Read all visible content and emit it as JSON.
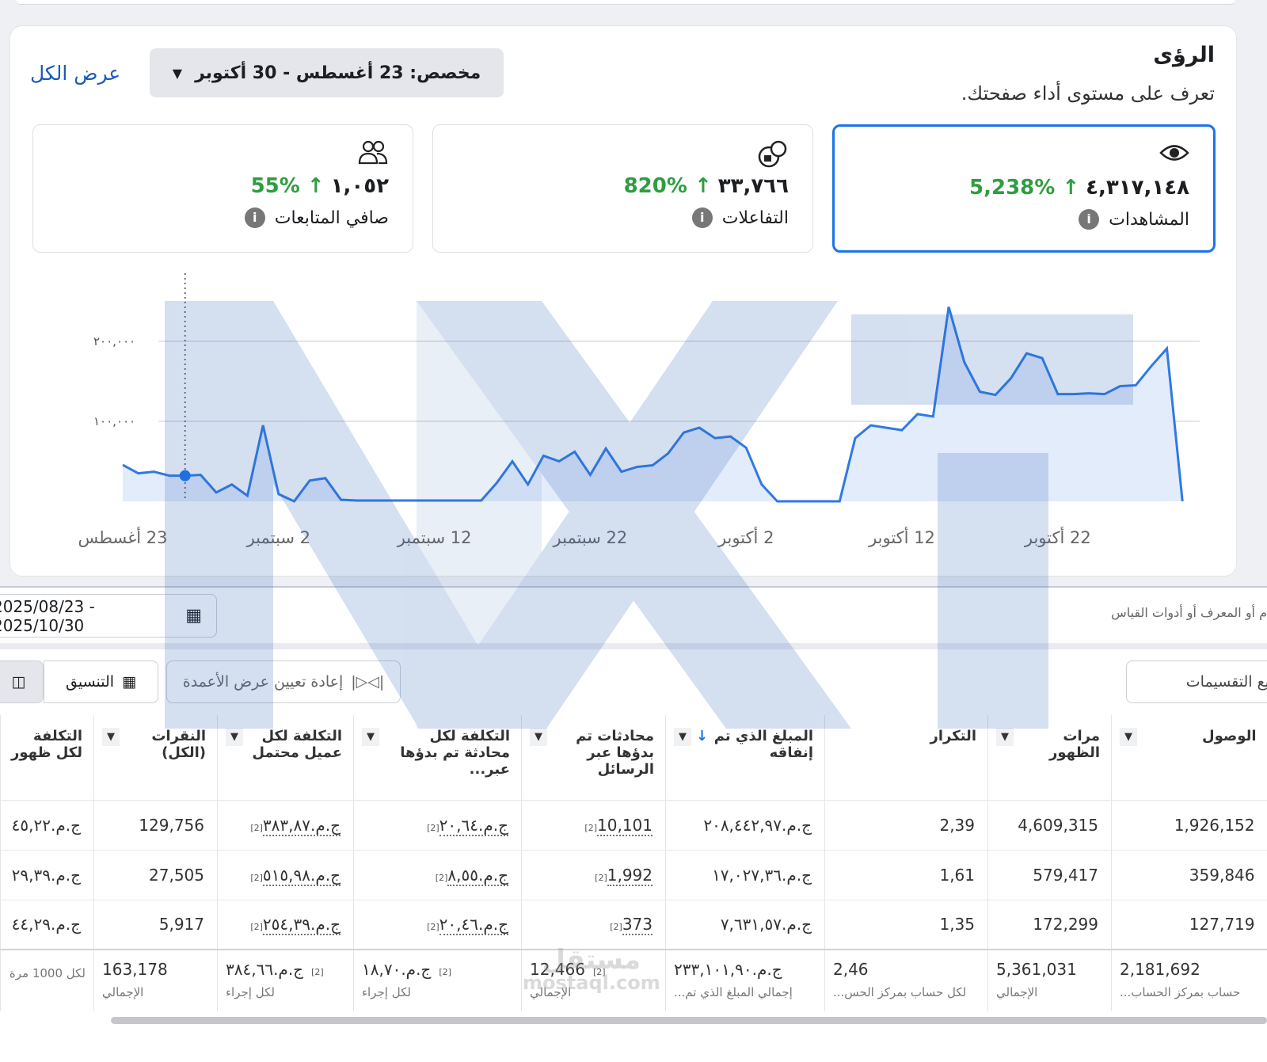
{
  "header": {
    "title": "الرؤى",
    "subtitle": "تعرف على مستوى أداء صفحتك.",
    "date_range": "مخصص: 23 أغسطس - 30 أكتوبر",
    "view_all": "عرض الكل"
  },
  "metrics": [
    {
      "icon": "eye-icon",
      "value": "٤,٣١٧,١٤٨",
      "change": "5,238%",
      "label": "المشاهدات",
      "selected": true
    },
    {
      "icon": "reactions-icon",
      "value": "٣٣,٧٦٦",
      "change": "820%",
      "label": "التفاعلات"
    },
    {
      "icon": "people-icon",
      "value": "١,٠٥٢",
      "change": "55%",
      "label": "صافي المتابعات"
    }
  ],
  "colors": {
    "accent": "#1a74e8",
    "positive": "#2e9d3f",
    "line": "#2f7ae5",
    "link": "#1a5bb8"
  },
  "chart_data": {
    "type": "area",
    "x_start": "23 أغسطس",
    "x_end": "30 أكتوبر",
    "x_ticks": [
      "23 أغسطس",
      "2 سبتمبر",
      "12 سبتمبر",
      "22 سبتمبر",
      "2 أكتوبر",
      "12 أكتوبر",
      "22 أكتوبر"
    ],
    "y_ticks": [
      {
        "value": 100000,
        "label": "١٠٠,٠٠٠"
      },
      {
        "value": 200000,
        "label": "٢٠٠,٠٠٠"
      }
    ],
    "ylim": [
      0,
      245000
    ],
    "grid": true,
    "highlighted_index": 4,
    "values": [
      45500,
      35000,
      37000,
      32000,
      32000,
      33000,
      11000,
      21000,
      7000,
      95000,
      9000,
      0,
      26000,
      29000,
      2000,
      1000,
      1000,
      1000,
      1000,
      1000,
      1000,
      1000,
      1000,
      1000,
      23000,
      50000,
      21000,
      57000,
      50000,
      62000,
      33000,
      66000,
      37000,
      43000,
      45000,
      60000,
      86000,
      92000,
      79000,
      81000,
      67000,
      21000,
      0,
      0,
      0,
      0,
      0,
      79000,
      95000,
      92000,
      89000,
      109000,
      106000,
      243000,
      174000,
      137000,
      133000,
      154000,
      185000,
      179000,
      134000,
      134000,
      135000,
      134000,
      144000,
      145000,
      169000,
      191000,
      0
    ]
  },
  "table_section": {
    "date_range": "2025/08/23 - 2025/10/30",
    "search_hint": "م أو المعرف أو أدوات القياس",
    "format_label": "التنسيق",
    "reset_columns_label": "إعادة تعيين عرض الأعمدة",
    "breakdowns_label": "يع التقسيمات",
    "columns": [
      "الوصول",
      "مرات الظهور",
      "التكرار",
      "المبلغ الذي تم إنفاقه",
      "محادثات تم بدؤها عبر الرسائل",
      "التكلفة لكل محادثة تم بدؤها عبر...",
      "التكلفة لكل عميل محتمل",
      "النقرات (الكل)",
      "التكلفة لكل ظهور"
    ],
    "rows": [
      [
        "1,926,152",
        "4,609,315",
        "2,39",
        "ج.م.٢٠٨,٤٤٢,٩٧",
        "10,101",
        "ج.م.٢٠,٦٤",
        "ج.م.٣٨٣,٨٧",
        "129,756",
        "ج.م.٤٥,٢٢"
      ],
      [
        "359,846",
        "579,417",
        "1,61",
        "ج.م.١٧,٠٢٧,٣٦",
        "1,992",
        "ج.م.٨,٥٥",
        "ج.م.٥١٥,٩٨",
        "27,505",
        "ج.م.٢٩,٣٩"
      ],
      [
        "127,719",
        "172,299",
        "1,35",
        "ج.م.٧,٦٣١,٥٧",
        "373",
        "ج.م.٢٠,٤٦",
        "ج.م.٢٥٤,٣٩",
        "5,917",
        "ج.م.٤٤,٢٩"
      ]
    ],
    "footnote": "[2]",
    "totals": [
      {
        "value": "2,181,692",
        "sub": "حساب بمركز الحساب..."
      },
      {
        "value": "5,361,031",
        "sub": "الإجمالي"
      },
      {
        "value": "2,46",
        "sub": "لكل حساب بمركز الحس..."
      },
      {
        "value": "ج.م.٢٣٣,١٠١,٩٠",
        "sub": "إجمالي المبلغ الذي تم..."
      },
      {
        "value": "12,466",
        "sub": "الإجمالي"
      },
      {
        "value": "ج.م.١٨,٧٠",
        "sub": "لكل إجراء"
      },
      {
        "value": "ج.م.٣٨٤,٦٦",
        "sub": "لكل إجراء"
      },
      {
        "value": "163,178",
        "sub": "الإجمالي"
      },
      {
        "value": "",
        "sub": "لكل 1000 مرة..."
      }
    ]
  },
  "watermark": {
    "logo": "NXT",
    "site": "مستقل",
    "url": "mostaql.com"
  }
}
